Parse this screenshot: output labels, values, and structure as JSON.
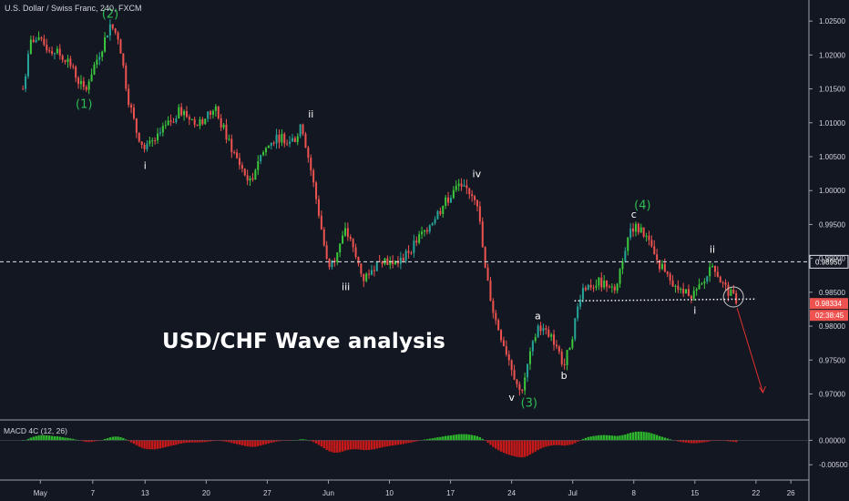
{
  "header": {
    "symbol_line": "U.S. Dollar / Swiss Franc, 240, FXCM"
  },
  "title_text": "USD/CHF Wave analysis",
  "indicator": {
    "label": "MACD 4C (12, 26)"
  },
  "colors": {
    "background": "#131722",
    "up": "#26a69a",
    "up_bright": "#3cc83c",
    "down": "#ef5350",
    "macd_pos": "#2db52d",
    "macd_neg": "#c61a1a",
    "current_tag": "#ef5350",
    "wave_green": "#2ebd52",
    "arrow": "#e23030"
  },
  "chart_data": {
    "type": "candlestick",
    "price_axis": {
      "range": [
        0.9663,
        1.0265
      ],
      "ticks": [
        "1.02500",
        "1.02000",
        "1.01500",
        "1.01000",
        "1.00500",
        "1.00000",
        "0.99500",
        "0.99000",
        "0.98500",
        "0.98000",
        "0.97500",
        "0.97000"
      ]
    },
    "time_axis": {
      "labels": [
        "May",
        "7",
        "13",
        "20",
        "27",
        "Jun",
        "10",
        "17",
        "24",
        "Jul",
        "8",
        "15",
        "22",
        "26"
      ]
    },
    "price_path": [
      [
        "Apr 29",
        1.015
      ],
      [
        "Apr 30",
        1.0225
      ],
      [
        "May 2",
        1.021
      ],
      [
        "May 4",
        1.0195
      ],
      [
        "May 6",
        1.0148
      ],
      [
        "May 8",
        1.021
      ],
      [
        "May 9",
        1.0245
      ],
      [
        "May 10",
        1.0225
      ],
      [
        "May 11",
        1.014
      ],
      [
        "May 12",
        1.0088
      ],
      [
        "May 13",
        1.006
      ],
      [
        "May 15",
        1.0087
      ],
      [
        "May 17",
        1.0118
      ],
      [
        "May 19",
        1.0098
      ],
      [
        "May 21",
        1.012
      ],
      [
        "May 23",
        1.006
      ],
      [
        "May 25",
        1.001
      ],
      [
        "May 26",
        1.0048
      ],
      [
        "May 28",
        1.008
      ],
      [
        "May 30",
        1.0074
      ],
      [
        "May 31",
        1.0095
      ],
      [
        "Jun 1",
        1.003
      ],
      [
        "Jun 2",
        0.996
      ],
      [
        "Jun 3",
        0.988
      ],
      [
        "Jun 5",
        0.9942
      ],
      [
        "Jun 7",
        0.987
      ],
      [
        "Jun 9",
        0.99
      ],
      [
        "Jun 11",
        0.9892
      ],
      [
        "Jun 14",
        0.994
      ],
      [
        "Jun 16",
        0.9975
      ],
      [
        "Jun 18",
        1.001
      ],
      [
        "Jun 20",
        0.999
      ],
      [
        "Jun 21",
        0.988
      ],
      [
        "Jun 22",
        0.9815
      ],
      [
        "Jun 24",
        0.974
      ],
      [
        "Jun 25",
        0.97
      ],
      [
        "Jun 27",
        0.98
      ],
      [
        "Jun 29",
        0.9777
      ],
      [
        "Jun 30",
        0.974
      ],
      [
        "Jul 1",
        0.979
      ],
      [
        "Jul 2",
        0.9855
      ],
      [
        "Jul 4",
        0.9865
      ],
      [
        "Jul 6",
        0.986
      ],
      [
        "Jul 7",
        0.9918
      ],
      [
        "Jul 8",
        0.9948
      ],
      [
        "Jul 9",
        0.9938
      ],
      [
        "Jul 11",
        0.989
      ],
      [
        "Jul 12",
        0.988
      ],
      [
        "Jul 13",
        0.985
      ],
      [
        "Jul 15",
        0.9848
      ],
      [
        "Jul 16",
        0.9862
      ],
      [
        "Jul 17",
        0.9896
      ],
      [
        "Jul 18",
        0.9865
      ],
      [
        "Jul 19",
        0.9848
      ],
      [
        "Jul 20",
        0.9834
      ]
    ],
    "current_price": "0.98334",
    "countdown": "02:38:45",
    "level_label": "0.98950",
    "levels": {
      "dashed": 0.9895,
      "dotted": 0.984
    },
    "wave_labels": [
      {
        "text": "(2)",
        "x": "May 9",
        "y": 1.0255,
        "style": "green"
      },
      {
        "text": "(1)",
        "x": "May 6",
        "y": 1.0122,
        "style": "green"
      },
      {
        "text": "i",
        "x": "May 13",
        "y": 1.0032,
        "style": "white"
      },
      {
        "text": "ii",
        "x": "Jun 1",
        "y": 1.0108,
        "style": "white"
      },
      {
        "text": "iii",
        "x": "Jun 5",
        "y": 0.9853,
        "style": "white"
      },
      {
        "text": "iv",
        "x": "Jun 20",
        "y": 1.002,
        "style": "white"
      },
      {
        "text": "v",
        "x": "Jun 24",
        "y": 0.969,
        "style": "white"
      },
      {
        "text": "(3)",
        "x": "Jun 26",
        "y": 0.9681,
        "style": "green"
      },
      {
        "text": "a",
        "x": "Jun 27",
        "y": 0.981,
        "style": "white"
      },
      {
        "text": "b",
        "x": "Jun 30",
        "y": 0.9722,
        "style": "white"
      },
      {
        "text": "c",
        "x": "Jul 8",
        "y": 0.996,
        "style": "white"
      },
      {
        "text": "(4)",
        "x": "Jul 9",
        "y": 0.9973,
        "style": "green"
      },
      {
        "text": "i",
        "x": "Jul 15",
        "y": 0.9818,
        "style": "white"
      },
      {
        "text": "ii",
        "x": "Jul 17",
        "y": 0.9908,
        "style": "white"
      }
    ],
    "macd_axis": {
      "ticks": [
        "0.00000",
        "-0.00500"
      ],
      "range": [
        -0.0072,
        0.0038
      ]
    }
  }
}
